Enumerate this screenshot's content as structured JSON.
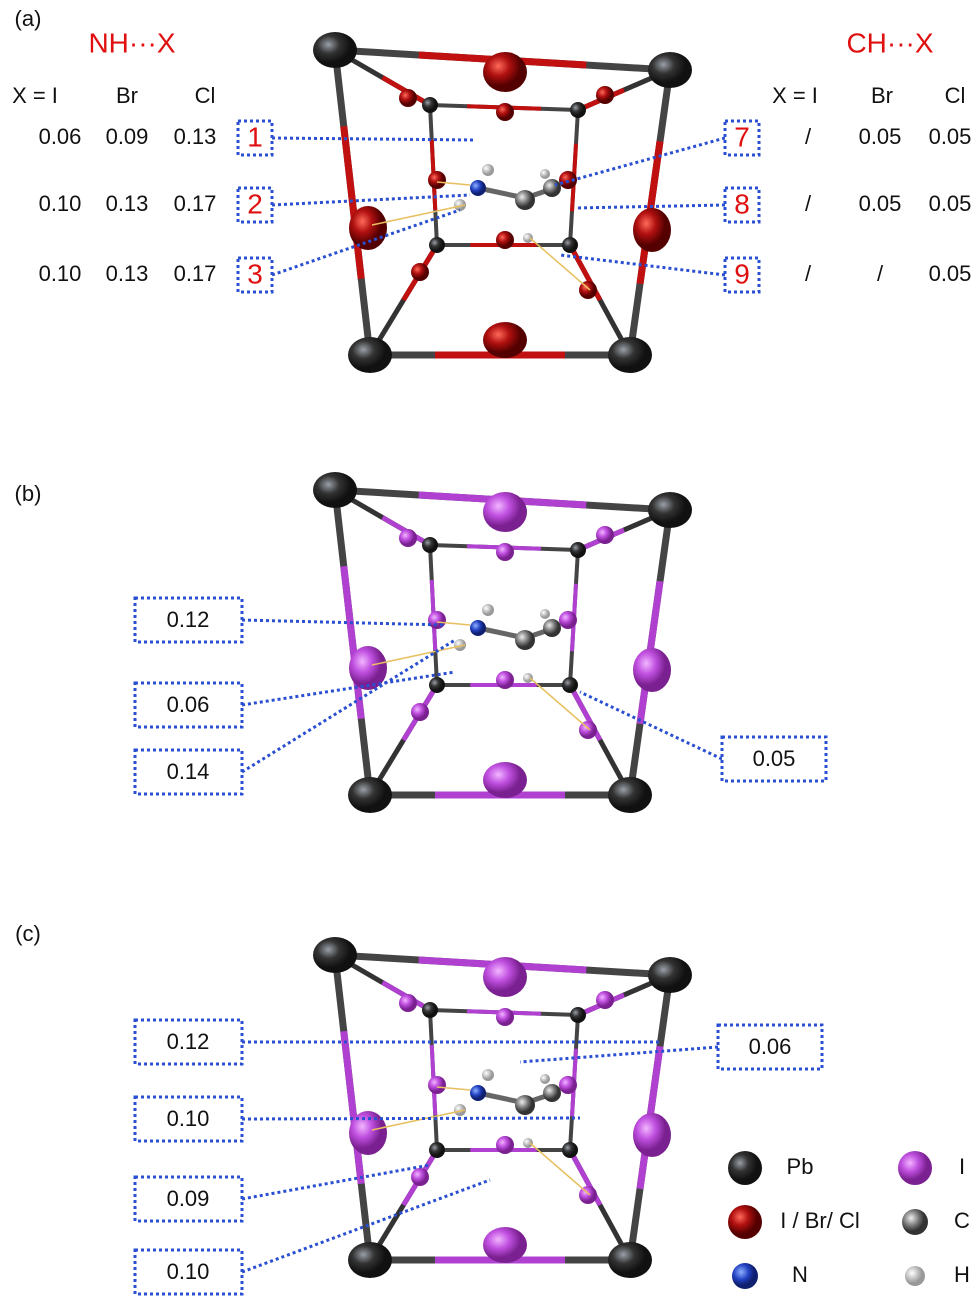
{
  "panel_a": {
    "label": "(a)",
    "nh_title": "NH···X",
    "ch_title": "CH···X",
    "nh_header": [
      "X = I",
      "Br",
      "Cl"
    ],
    "ch_header": [
      "X = I",
      "Br",
      "Cl"
    ],
    "nh_rows": [
      {
        "id": "1",
        "values": [
          "0.06",
          "0.09",
          "0.13"
        ]
      },
      {
        "id": "2",
        "values": [
          "0.10",
          "0.13",
          "0.17"
        ]
      },
      {
        "id": "3",
        "values": [
          "0.10",
          "0.13",
          "0.17"
        ]
      }
    ],
    "ch_rows": [
      {
        "id": "7",
        "values": [
          "/",
          "0.05",
          "0.05"
        ]
      },
      {
        "id": "8",
        "values": [
          "/",
          "0.05",
          "0.05"
        ]
      },
      {
        "id": "9",
        "values": [
          "/",
          "/",
          "0.05"
        ]
      }
    ]
  },
  "panel_b": {
    "label": "(b)",
    "boxes": [
      "0.12",
      "0.06",
      "0.14",
      "0.05"
    ]
  },
  "panel_c": {
    "label": "(c)",
    "boxes": [
      "0.12",
      "0.10",
      "0.09",
      "0.10",
      "0.06"
    ]
  },
  "legend": [
    "Pb",
    "I",
    "I / Br/ Cl",
    "C",
    "N",
    "H"
  ]
}
